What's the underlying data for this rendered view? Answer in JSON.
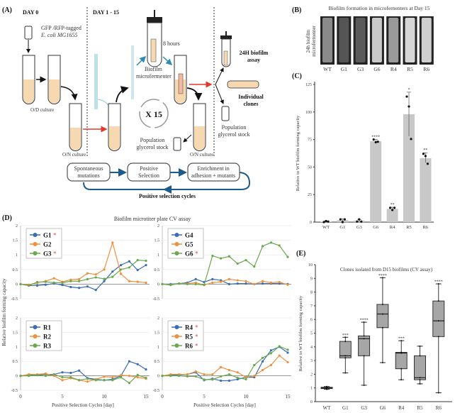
{
  "panel_labels": {
    "a": "(A)",
    "b": "(B)",
    "c": "(C)",
    "d": "(D)",
    "e": "(E)"
  },
  "diagram": {
    "day0": "DAY 0",
    "day1_15": "DAY 1 - 15",
    "strain_line1": "GFP /RFP-tagged",
    "strain_line2": "E. coli MG1655",
    "od_culture": "O/D culture",
    "on_culture_1": "O/N culture",
    "on_culture_2": "O/N culture",
    "eight_hours": "8 hours",
    "microfermenter_line1": "Biofilm",
    "microfermenter_line2": "microfermenter",
    "x15": "X 15",
    "glycerol_1_line1": "Population",
    "glycerol_1_line2": "glycerol stock",
    "assay_line1": "24H biofilm",
    "assay_line2": "assay",
    "clones_line1": "Individual",
    "clones_line2": "clones",
    "glycerol_2_line1": "Population",
    "glycerol_2_line2": "glycerol stock",
    "flow": [
      {
        "line1": "Spontaneous",
        "line2": "mutations"
      },
      {
        "line1": "Positive",
        "line2": "Selection"
      },
      {
        "line1": "Enrichment in",
        "line2": "adhesion + mutants"
      }
    ],
    "cycle_label": "Positive selection cycles"
  },
  "panel_b": {
    "title": "Biofilm formation in microfernenters at Day 15",
    "ylabel_line1": "24h biofilm",
    "ylabel_line2": "microfermenter",
    "labels": [
      "WT",
      "G1",
      "G3",
      "G6",
      "R4",
      "R5",
      "R6"
    ]
  },
  "chart_data": [
    {
      "id": "C",
      "type": "bar",
      "categories": [
        "WT",
        "G1",
        "G3",
        "G6",
        "R4",
        "R5",
        "R6"
      ],
      "values": [
        0.5,
        1.8,
        1.3,
        73.5,
        12,
        98,
        58
      ],
      "points": [
        [
          0,
          1,
          0.5
        ],
        [
          2.5,
          0,
          2.5
        ],
        [
          0.5,
          2.5,
          0.5
        ],
        [
          75,
          72.5,
          73
        ],
        [
          13,
          11,
          13
        ],
        [
          114,
          105,
          75.5
        ],
        [
          62,
          60,
          53
        ]
      ],
      "error": [
        [
          0,
          1
        ],
        [
          0,
          3
        ],
        [
          0,
          2.5
        ],
        [
          72,
          75
        ],
        [
          11,
          13.5
        ],
        [
          78,
          118
        ],
        [
          54,
          63
        ]
      ],
      "significance": [
        "",
        "",
        "",
        "****",
        "**",
        "*",
        "**"
      ],
      "ylabel": "Relative to WT biofilm forming capacity",
      "ylim": [
        0,
        125
      ],
      "yticks": [
        0,
        25,
        50,
        75,
        100,
        125
      ],
      "bar_color": "#c8c8c8"
    },
    {
      "id": "D",
      "type": "line",
      "title": "Biofilm microtiter plate CV assay",
      "ylabel": "Relative biofilm forming capacity",
      "xlabel": "Positive Selection Cycles [day]",
      "xlim": [
        0,
        15
      ],
      "ylim": [
        -0.5,
        2
      ],
      "xticks": [
        0,
        5,
        10,
        15
      ],
      "yticks": [
        "-0.5",
        "0",
        "0.5",
        "1",
        "1.5",
        "2"
      ],
      "x": [
        0,
        1,
        2,
        3,
        4,
        5,
        6,
        7,
        8,
        9,
        10,
        11,
        12,
        13,
        14,
        15
      ],
      "subplots": [
        {
          "series": [
            {
              "name": "G1",
              "marked": true,
              "color": "#3a6db5",
              "values": [
                0,
                -0.05,
                -0.05,
                -0.02,
                0.02,
                -0.03,
                -0.1,
                -0.13,
                -0.08,
                -0.2,
                0.1,
                0.43,
                0.65,
                0.78,
                0.48,
                0.65
              ]
            },
            {
              "name": "G2",
              "marked": false,
              "color": "#f0903a",
              "values": [
                0,
                -0.02,
                0.05,
                0.1,
                0.2,
                0.08,
                0.15,
                0.17,
                0.37,
                0.33,
                0.5,
                1.42,
                0.35,
                0.1,
                0.08,
                0.05
              ]
            },
            {
              "name": "G3",
              "marked": true,
              "color": "#69a84d",
              "values": [
                0,
                -0.05,
                0.07,
                0.08,
                0.05,
                0.05,
                0.1,
                0.1,
                0.17,
                0.23,
                0.18,
                0.25,
                0.5,
                0.57,
                0.82,
                0.8
              ]
            }
          ]
        },
        {
          "series": [
            {
              "name": "G4",
              "marked": false,
              "color": "#3a6db5",
              "values": [
                0,
                0,
                0.02,
                0.05,
                0.17,
                0.07,
                0.17,
                0.13,
                0,
                0.02,
                0.02,
                0,
                0.02,
                0.02,
                0.02,
                0
              ]
            },
            {
              "name": "G5",
              "marked": false,
              "color": "#f0903a",
              "values": [
                0,
                -0.02,
                0.02,
                0.02,
                0.05,
                -0.03,
                0.05,
                0.08,
                0.17,
                0.13,
                0.1,
                0,
                0.1,
                0.05,
                0.07,
                -0.02
              ]
            },
            {
              "name": "G6",
              "marked": true,
              "color": "#69a84d",
              "values": [
                0,
                -0.03,
                0.02,
                0,
                0,
                -0.03,
                0.97,
                0.88,
                0.95,
                0.7,
                0.82,
                0.6,
                1.3,
                1.42,
                1.32,
                0.93
              ]
            }
          ]
        },
        {
          "series": [
            {
              "name": "R1",
              "marked": false,
              "color": "#3a6db5",
              "values": [
                0,
                0.02,
                0.03,
                0.05,
                0.05,
                0.12,
                0.1,
                0.18,
                -0.08,
                -0.12,
                -0.15,
                -0.12,
                0,
                0.5,
                0.4,
                0.22
              ]
            },
            {
              "name": "R2",
              "marked": false,
              "color": "#f0903a",
              "values": [
                0,
                0.05,
                0.05,
                0.08,
                0,
                -0.15,
                -0.08,
                -0.15,
                -0.2,
                -0.12,
                -0.03,
                -0.05,
                0.02,
                0,
                -0.05,
                -0.1
              ]
            },
            {
              "name": "R3",
              "marked": false,
              "color": "#69a84d",
              "values": [
                0,
                0,
                0.02,
                0,
                0.05,
                -0.05,
                -0.05,
                -0.15,
                -0.1,
                -0.15,
                -0.15,
                -0.15,
                -0.05,
                -0.25,
                0.03,
                -0.07
              ]
            }
          ]
        },
        {
          "series": [
            {
              "name": "R4",
              "marked": true,
              "color": "#3a6db5",
              "values": [
                0,
                0.03,
                0.03,
                0.05,
                0.12,
                -0.15,
                -0.1,
                -0.17,
                -0.17,
                -0.12,
                -0.05,
                -0.05,
                0.5,
                0.88,
                1.0,
                0.8
              ]
            },
            {
              "name": "R5",
              "marked": true,
              "color": "#f0903a",
              "values": [
                0,
                0.05,
                0.05,
                0.05,
                0.15,
                0.05,
                0.05,
                0.3,
                0.2,
                0.12,
                -0.05,
                0,
                0.2,
                0.37,
                0.7,
                0.47
              ]
            },
            {
              "name": "R6",
              "marked": true,
              "color": "#69a84d",
              "values": [
                0,
                0,
                0,
                -0.02,
                -0.02,
                -0.13,
                -0.13,
                -0.02,
                0.05,
                -0.07,
                -0.12,
                0.37,
                0.62,
                0.78,
                1.02,
                0.9
              ]
            }
          ]
        }
      ],
      "marker_symbol": "*",
      "marker_color": "#e0463c"
    },
    {
      "id": "E",
      "type": "box",
      "title": "Clones isolated from D15 biofilms (CV assay)",
      "ylabel": "Relative to WT biofilm forming capacity",
      "ylim": [
        0,
        10
      ],
      "yticks": [
        0,
        1,
        2,
        3,
        4,
        5,
        6,
        7,
        8,
        9,
        10
      ],
      "categories": [
        "WT",
        "G1",
        "G3",
        "G6",
        "R4",
        "R5",
        "R6"
      ],
      "boxes": [
        {
          "min": 0.9,
          "q1": 0.95,
          "median": 1.0,
          "q3": 1.05,
          "max": 1.1
        },
        {
          "min": 2.1,
          "q1": 3.2,
          "median": 3.35,
          "q3": 4.4,
          "max": 4.7
        },
        {
          "min": 1.2,
          "q1": 3.35,
          "median": 4.6,
          "q3": 4.8,
          "max": 5.8
        },
        {
          "min": 2.85,
          "q1": 5.4,
          "median": 6.4,
          "q3": 7.1,
          "max": 9.05
        },
        {
          "min": 1.6,
          "q1": 2.4,
          "median": 3.55,
          "q3": 3.6,
          "max": 4.45
        },
        {
          "min": 1.3,
          "q1": 1.6,
          "median": 1.75,
          "q3": 3.35,
          "max": 4.05
        },
        {
          "min": 0.65,
          "q1": 4.75,
          "median": 5.9,
          "q3": 7.35,
          "max": 8.6
        }
      ],
      "significance": [
        "",
        "***",
        "****",
        "****",
        "***",
        "",
        "****"
      ],
      "box_color": "#a6a6a6"
    }
  ]
}
